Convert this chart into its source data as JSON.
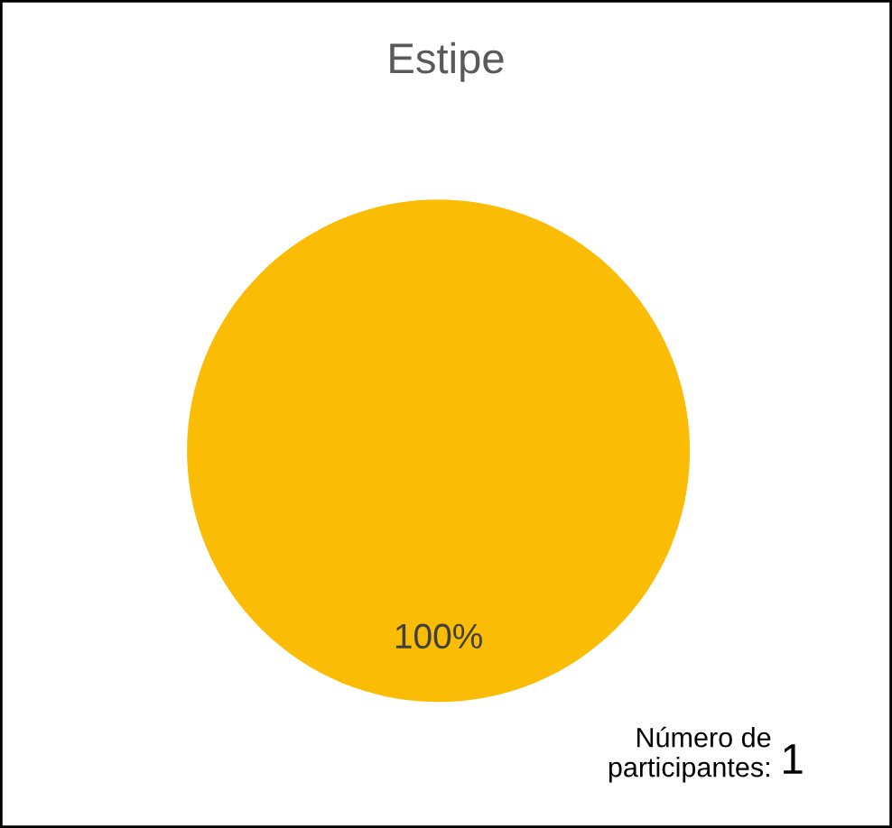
{
  "chart_data": {
    "type": "pie",
    "title": "Estipe",
    "categories": [
      "100%"
    ],
    "values": [
      100
    ],
    "colors": [
      "#fbbc05"
    ],
    "annotations": [
      "Número de\nparticipantes:",
      "1"
    ]
  }
}
